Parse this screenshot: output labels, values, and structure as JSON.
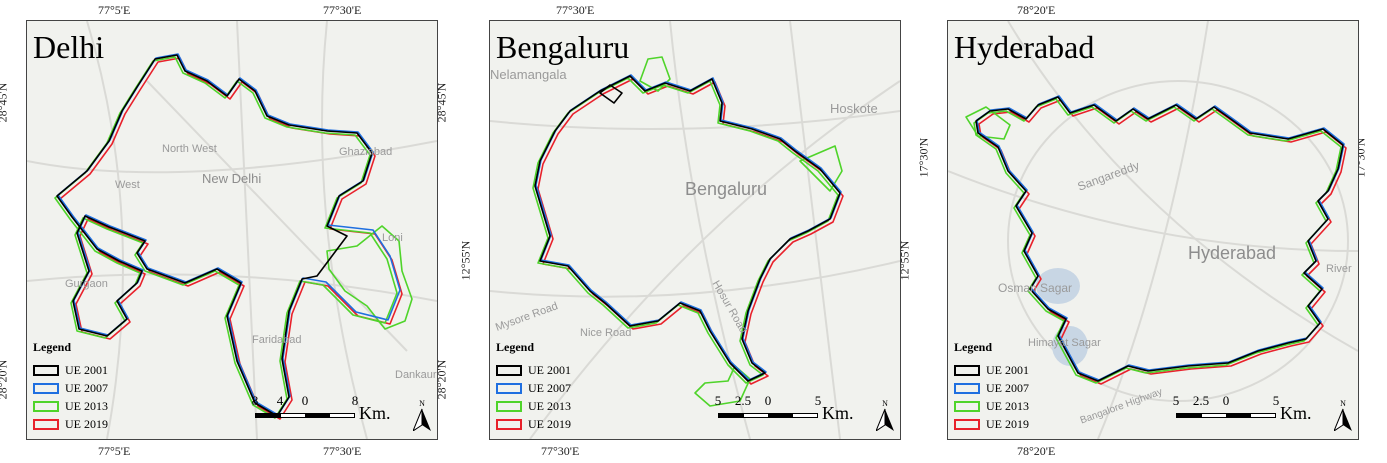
{
  "colors": {
    "ue2001": "#000000",
    "ue2007": "#1f6fe0",
    "ue2013": "#4fd42a",
    "ue2019": "#e8212b",
    "basemap": "#f1f2ee",
    "roads": "#dadad6"
  },
  "legend": {
    "title": "Legend",
    "items": [
      "UE 2001",
      "UE 2007",
      "UE 2013",
      "UE 2019"
    ]
  },
  "panels": [
    {
      "city": "Delhi",
      "top_ticks": [
        "77°5'E",
        "77°30'E"
      ],
      "bottom_ticks": [
        "77°5'E",
        "77°30'E"
      ],
      "left_ticks": [
        "28°45'N",
        "28°20'N"
      ],
      "right_ticks": [
        "28°45'N",
        "28°20'N"
      ],
      "places": [
        "North West",
        "West",
        "New Delhi",
        "Gurgaon",
        "Ghaziabad",
        "Faridabad",
        "Dankaur",
        "Loni"
      ],
      "scale_labels": [
        "8",
        "4",
        "0",
        "8"
      ],
      "scale_unit": "Km.",
      "north": "N"
    },
    {
      "city": "Bengaluru",
      "top_ticks": [
        "77°30'E"
      ],
      "bottom_ticks": [
        "77°30'E"
      ],
      "left_ticks": [
        "12°55'N"
      ],
      "right_ticks": [
        "12°55'N"
      ],
      "places": [
        "Bengaluru",
        "Hoskote",
        "Nelamangala",
        "Mysore Road",
        "Nice Road",
        "Hosur Road"
      ],
      "scale_labels": [
        "5",
        "2.5",
        "0",
        "5"
      ],
      "scale_unit": "Km.",
      "north": "N"
    },
    {
      "city": "Hyderabad",
      "top_ticks": [
        "78°20'E"
      ],
      "bottom_ticks": [
        "78°20'E"
      ],
      "left_ticks": [
        "17°30'N"
      ],
      "right_ticks": [
        "17°30'N"
      ],
      "places": [
        "Hyderabad",
        "Sangareddy",
        "Osman Sagar",
        "Himayat Sagar",
        "Bangalore Highway",
        "River"
      ],
      "scale_labels": [
        "5",
        "2.5",
        "0",
        "5"
      ],
      "scale_unit": "Km.",
      "north": "N"
    }
  ]
}
